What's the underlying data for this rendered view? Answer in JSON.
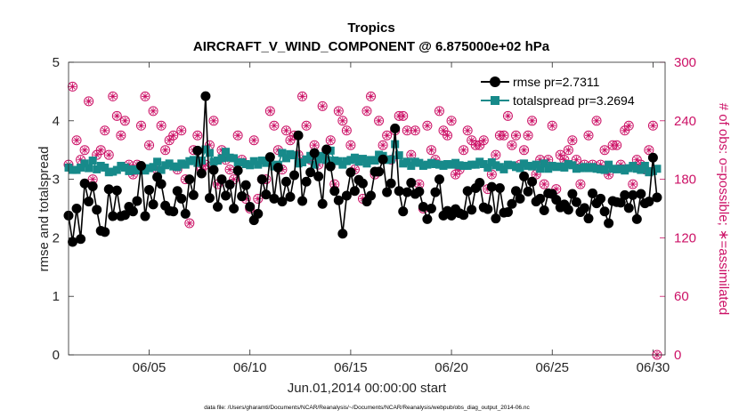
{
  "chart_data": {
    "type": "line",
    "title": "Tropics",
    "subtitle": "AIRCRAFT_V_WIND_COMPONENT @ 6.875000e+02 hPa",
    "xlabel": "Jun.01,2014 00:00:00 start",
    "ylabel": "rmse and totalspread",
    "ylabel_right": "# of obs: o=possible; ∗=assimilated",
    "x_ticks": [
      "06/05",
      "06/10",
      "06/15",
      "06/20",
      "06/25",
      "06/30"
    ],
    "x_tick_days": [
      5,
      10,
      15,
      20,
      25,
      30
    ],
    "xlim": [
      1,
      30.6
    ],
    "ylim": [
      0,
      5
    ],
    "y_ticks": [
      "0",
      "1",
      "2",
      "3",
      "4",
      "5"
    ],
    "y_tick_values": [
      0,
      1,
      2,
      3,
      4,
      5
    ],
    "ylim_right": [
      0,
      300
    ],
    "y_ticks_right": [
      "0",
      "60",
      "120",
      "180",
      "240",
      "300"
    ],
    "y_tick_values_right": [
      0,
      60,
      120,
      180,
      240,
      300
    ],
    "footnote": "data file: /Users/gharamti/Documents/NCAR/Reanalysis/~/Documents/NCAR/Reanalysis/webpub/obs_diag_output_2014-06.nc",
    "colors": {
      "rmse": "#000000",
      "spread": "#178a8a",
      "obs": "#cc1166"
    },
    "series": [
      {
        "name": "rmse",
        "legend": "rmse pr=2.7311",
        "axis": "left",
        "values": [
          2.38,
          1.93,
          2.5,
          1.98,
          2.93,
          2.62,
          2.88,
          2.48,
          2.12,
          2.1,
          2.83,
          2.37,
          2.81,
          2.37,
          2.39,
          2.53,
          2.45,
          2.63,
          3.23,
          2.37,
          2.82,
          2.57,
          3.04,
          2.92,
          2.55,
          2.46,
          2.45,
          2.8,
          2.67,
          2.41,
          3.0,
          2.73,
          3.49,
          3.1,
          4.42,
          2.68,
          3.16,
          2.53,
          3.0,
          2.72,
          2.91,
          2.5,
          3.15,
          2.71,
          2.9,
          2.53,
          2.3,
          2.41,
          3.0,
          2.74,
          3.38,
          2.67,
          3.2,
          2.62,
          2.96,
          2.7,
          3.07,
          3.75,
          2.63,
          2.96,
          3.12,
          3.45,
          3.05,
          2.58,
          3.51,
          3.22,
          2.8,
          2.64,
          2.07,
          2.72,
          3.12,
          2.8,
          2.99,
          2.93,
          2.62,
          2.72,
          3.13,
          3.13,
          3.34,
          2.78,
          2.93,
          3.87,
          2.8,
          2.45,
          2.78,
          2.94,
          2.75,
          2.79,
          2.53,
          2.32,
          2.5,
          2.78,
          3.0,
          2.38,
          2.46,
          2.38,
          2.49,
          2.42,
          2.39,
          2.8,
          2.48,
          2.85,
          2.94,
          2.52,
          2.49,
          2.87,
          2.33,
          2.85,
          2.43,
          2.44,
          2.58,
          2.8,
          2.67,
          3.05,
          2.79,
          2.96,
          2.62,
          2.67,
          2.47,
          2.76,
          2.75,
          2.65,
          2.52,
          2.57,
          2.48,
          2.75,
          2.61,
          2.44,
          2.51,
          2.33,
          2.76,
          2.59,
          2.67,
          2.45,
          2.25,
          2.63,
          2.61,
          2.6,
          2.73,
          2.51,
          2.73,
          2.32,
          2.75,
          2.59,
          2.62,
          3.37,
          2.69
        ]
      },
      {
        "name": "totalspread",
        "legend": "totalspread pr=3.2694",
        "axis": "left",
        "values": [
          3.2,
          3.16,
          3.16,
          3.2,
          3.27,
          3.19,
          3.32,
          3.17,
          3.23,
          3.2,
          3.12,
          3.13,
          3.16,
          3.23,
          3.2,
          3.14,
          3.17,
          3.15,
          3.17,
          3.15,
          3.19,
          3.21,
          3.3,
          3.16,
          3.24,
          3.27,
          3.22,
          3.21,
          3.27,
          3.25,
          3.31,
          3.33,
          3.28,
          3.32,
          3.51,
          3.45,
          3.3,
          3.32,
          3.36,
          3.47,
          3.37,
          3.36,
          3.29,
          3.29,
          3.26,
          3.24,
          3.31,
          3.25,
          3.32,
          3.28,
          3.32,
          3.22,
          3.25,
          3.45,
          3.36,
          3.43,
          3.41,
          3.27,
          3.29,
          3.34,
          3.4,
          3.25,
          3.34,
          3.4,
          3.33,
          3.49,
          3.32,
          3.31,
          3.25,
          3.31,
          3.33,
          3.37,
          3.3,
          3.35,
          3.27,
          3.33,
          3.32,
          3.42,
          3.4,
          3.33,
          3.34,
          3.6,
          3.41,
          3.27,
          3.3,
          3.23,
          3.3,
          3.28,
          3.23,
          3.25,
          3.28,
          3.26,
          3.25,
          3.23,
          3.26,
          3.25,
          3.28,
          3.24,
          3.23,
          3.23,
          3.25,
          3.25,
          3.3,
          3.26,
          3.2,
          3.29,
          3.24,
          3.21,
          3.17,
          3.25,
          3.24,
          3.21,
          3.19,
          3.27,
          3.23,
          3.22,
          3.25,
          3.18,
          3.27,
          3.18,
          3.23,
          3.21,
          3.22,
          3.2,
          3.26,
          3.24,
          3.18,
          3.19,
          3.21,
          3.19,
          3.21,
          3.18,
          3.17,
          3.16,
          3.25,
          3.18,
          3.17,
          3.18,
          3.15,
          3.19,
          3.23,
          3.18,
          3.16,
          3.23,
          3.12,
          3.14,
          3.18
        ]
      },
      {
        "name": "obs",
        "legend": "",
        "axis": "right",
        "values": [
          195,
          275,
          220,
          200,
          210,
          260,
          180,
          205,
          210,
          230,
          205,
          265,
          245,
          225,
          240,
          195,
          185,
          195,
          235,
          265,
          215,
          250,
          190,
          235,
          210,
          220,
          225,
          190,
          230,
          180,
          135,
          210,
          225,
          190,
          195,
          215,
          240,
          175,
          210,
          200,
          190,
          180,
          225,
          200,
          160,
          150,
          220,
          160,
          180,
          180,
          250,
          235,
          210,
          190,
          230,
          220,
          225,
          205,
          265,
          235,
          200,
          215,
          195,
          255,
          210,
          220,
          175,
          250,
          240,
          230,
          215,
          190,
          200,
          160,
          250,
          265,
          185,
          240,
          215,
          225,
          200,
          230,
          245,
          245,
          230,
          205,
          230,
          175,
          150,
          235,
          210,
          200,
          250,
          230,
          225,
          240,
          185,
          190,
          210,
          230,
          220,
          215,
          215,
          220,
          170,
          185,
          205,
          225,
          225,
          245,
          215,
          225,
          195,
          210,
          225,
          240,
          185,
          200,
          175,
          200,
          235,
          170,
          205,
          200,
          210,
          220,
          200,
          175,
          195,
          225,
          195,
          240,
          195,
          210,
          185,
          215,
          215,
          195,
          230,
          235,
          175,
          200,
          195,
          190,
          210,
          235,
          0
        ]
      }
    ]
  }
}
